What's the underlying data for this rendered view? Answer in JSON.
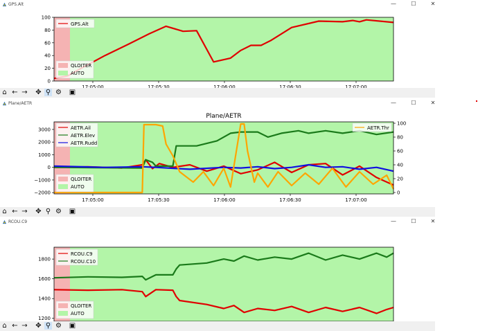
{
  "windows": [
    {
      "title": "GPS.Alt",
      "legend": [
        "GPS.Alt"
      ],
      "mode_legend": [
        "QLOITER",
        "AUTO"
      ]
    },
    {
      "title": "Plane/AETR",
      "plot_title": "Plane/AETR",
      "legend": [
        "AETR.Ail",
        "AETR.Elev",
        "AETR.Rudd"
      ],
      "legend_right": [
        "AETR.Thr"
      ],
      "mode_legend": [
        "QLOITER",
        "AUTO"
      ]
    },
    {
      "title": "RCOU.C9",
      "legend": [
        "RCOU.C9",
        "RCOU.C10"
      ],
      "mode_legend": [
        "QLOITER",
        "AUTO"
      ]
    }
  ],
  "toolbar": {
    "icons": [
      "home-icon",
      "back-icon",
      "forward-icon",
      "pan-icon",
      "zoom-icon",
      "configure-icon",
      "save-icon"
    ]
  },
  "window_controls": {
    "minimize": "—",
    "maximize": "☐",
    "close": "✕"
  },
  "colors": {
    "auto_bg": "#b3f5a8",
    "qloiter_bg": "#f5b3b3",
    "red": "#e00000",
    "green": "#1a7a1a",
    "blue": "#1010e0",
    "orange": "#ffa500"
  },
  "chart_data": [
    {
      "type": "line",
      "title": "",
      "x_ticks": [
        "17:05:00",
        "17:05:30",
        "17:06:00",
        "17:06:30",
        "17:07:00"
      ],
      "y_ticks": [
        "0",
        "20",
        "40",
        "60",
        "80",
        "100"
      ],
      "ylim": [
        0,
        100
      ],
      "series": [
        {
          "name": "GPS.Alt",
          "color": "#e00000",
          "t": [
            0,
            4,
            8,
            15,
            22,
            28,
            33,
            38,
            42,
            47,
            52,
            55,
            58,
            61,
            64,
            70,
            78,
            85,
            88,
            90,
            92,
            100
          ],
          "values": [
            4,
            8,
            20,
            40,
            58,
            74,
            86,
            78,
            79,
            30,
            36,
            48,
            56,
            56,
            64,
            84,
            94,
            93,
            95,
            93,
            96,
            92
          ]
        }
      ]
    },
    {
      "type": "line",
      "title": "Plane/AETR",
      "x_ticks": [
        "17:05:00",
        "17:05:30",
        "17:06:00",
        "17:06:30",
        "17:07:00"
      ],
      "y_ticks_left": [
        "−2000",
        "−1000",
        "0",
        "1000",
        "2000",
        "3000"
      ],
      "y_ticks_right": [
        "0",
        "20",
        "40",
        "60",
        "80",
        "100"
      ],
      "ylim_left": [
        -2100,
        3600
      ],
      "ylim_right": [
        -2,
        102
      ],
      "series": [
        {
          "name": "AETR.Ail",
          "color": "#e00000",
          "axis": "left",
          "t": [
            0,
            10,
            20,
            26,
            27,
            29,
            31,
            35,
            40,
            45,
            50,
            55,
            60,
            65,
            70,
            75,
            80,
            85,
            90,
            95,
            100
          ],
          "values": [
            0,
            50,
            -50,
            200,
            600,
            -100,
            300,
            0,
            200,
            -300,
            100,
            -500,
            -200,
            400,
            -400,
            200,
            300,
            -600,
            100,
            -800,
            -1400
          ]
        },
        {
          "name": "AETR.Elev",
          "color": "#1a7a1a",
          "axis": "left",
          "t": [
            0,
            26,
            27,
            29,
            30,
            35,
            36,
            37,
            40,
            42,
            48,
            52,
            55,
            60,
            63,
            67,
            72,
            75,
            80,
            85,
            90,
            95,
            100
          ],
          "values": [
            0,
            -50,
            600,
            400,
            100,
            100,
            1700,
            1700,
            1700,
            1700,
            2100,
            2700,
            2800,
            2800,
            2400,
            2700,
            2900,
            2700,
            2900,
            2700,
            2900,
            2600,
            2800
          ]
        },
        {
          "name": "AETR.Rudd",
          "color": "#1010e0",
          "axis": "left",
          "t": [
            0,
            15,
            26,
            30,
            40,
            50,
            55,
            60,
            65,
            70,
            75,
            80,
            85,
            90,
            95,
            100
          ],
          "values": [
            100,
            0,
            50,
            0,
            -150,
            0,
            -50,
            50,
            -100,
            0,
            200,
            0,
            50,
            -150,
            0,
            -300
          ]
        },
        {
          "name": "AETR.Thr",
          "color": "#ffa500",
          "axis": "right",
          "t": [
            0,
            26,
            26.5,
            30,
            32,
            33,
            35,
            37,
            41,
            44,
            47,
            50,
            52,
            55,
            56,
            57,
            59,
            60,
            63,
            66,
            70,
            74,
            78,
            82,
            86,
            90,
            94,
            98,
            100
          ],
          "values": [
            0,
            0,
            98,
            98,
            96,
            70,
            53,
            30,
            15,
            30,
            10,
            35,
            8,
            99,
            99,
            60,
            15,
            28,
            8,
            30,
            10,
            28,
            12,
            35,
            8,
            30,
            12,
            25,
            5
          ]
        }
      ]
    },
    {
      "type": "line",
      "title": "",
      "x_ticks": [
        "17:05:00",
        "17:05:30",
        "17:06:00",
        "17:06:30",
        "17:07:00"
      ],
      "y_ticks": [
        "1200",
        "1400",
        "1600",
        "1800"
      ],
      "ylim": [
        1170,
        1920
      ],
      "series": [
        {
          "name": "RCOU.C9",
          "color": "#e00000",
          "t": [
            0,
            10,
            20,
            26,
            27,
            30,
            35,
            36,
            37,
            45,
            50,
            53,
            56,
            60,
            65,
            70,
            75,
            80,
            85,
            90,
            95,
            98,
            100
          ],
          "values": [
            1490,
            1485,
            1490,
            1470,
            1420,
            1490,
            1485,
            1420,
            1380,
            1340,
            1300,
            1330,
            1260,
            1300,
            1280,
            1320,
            1260,
            1310,
            1270,
            1310,
            1250,
            1290,
            1310
          ]
        },
        {
          "name": "RCOU.C10",
          "color": "#1a7a1a",
          "t": [
            0,
            10,
            20,
            26,
            27,
            30,
            35,
            36,
            37,
            45,
            50,
            53,
            56,
            60,
            65,
            70,
            75,
            80,
            85,
            90,
            95,
            98,
            100
          ],
          "values": [
            1610,
            1620,
            1615,
            1625,
            1590,
            1640,
            1640,
            1700,
            1740,
            1760,
            1800,
            1780,
            1830,
            1790,
            1820,
            1800,
            1860,
            1790,
            1840,
            1800,
            1860,
            1820,
            1860
          ]
        }
      ]
    }
  ]
}
